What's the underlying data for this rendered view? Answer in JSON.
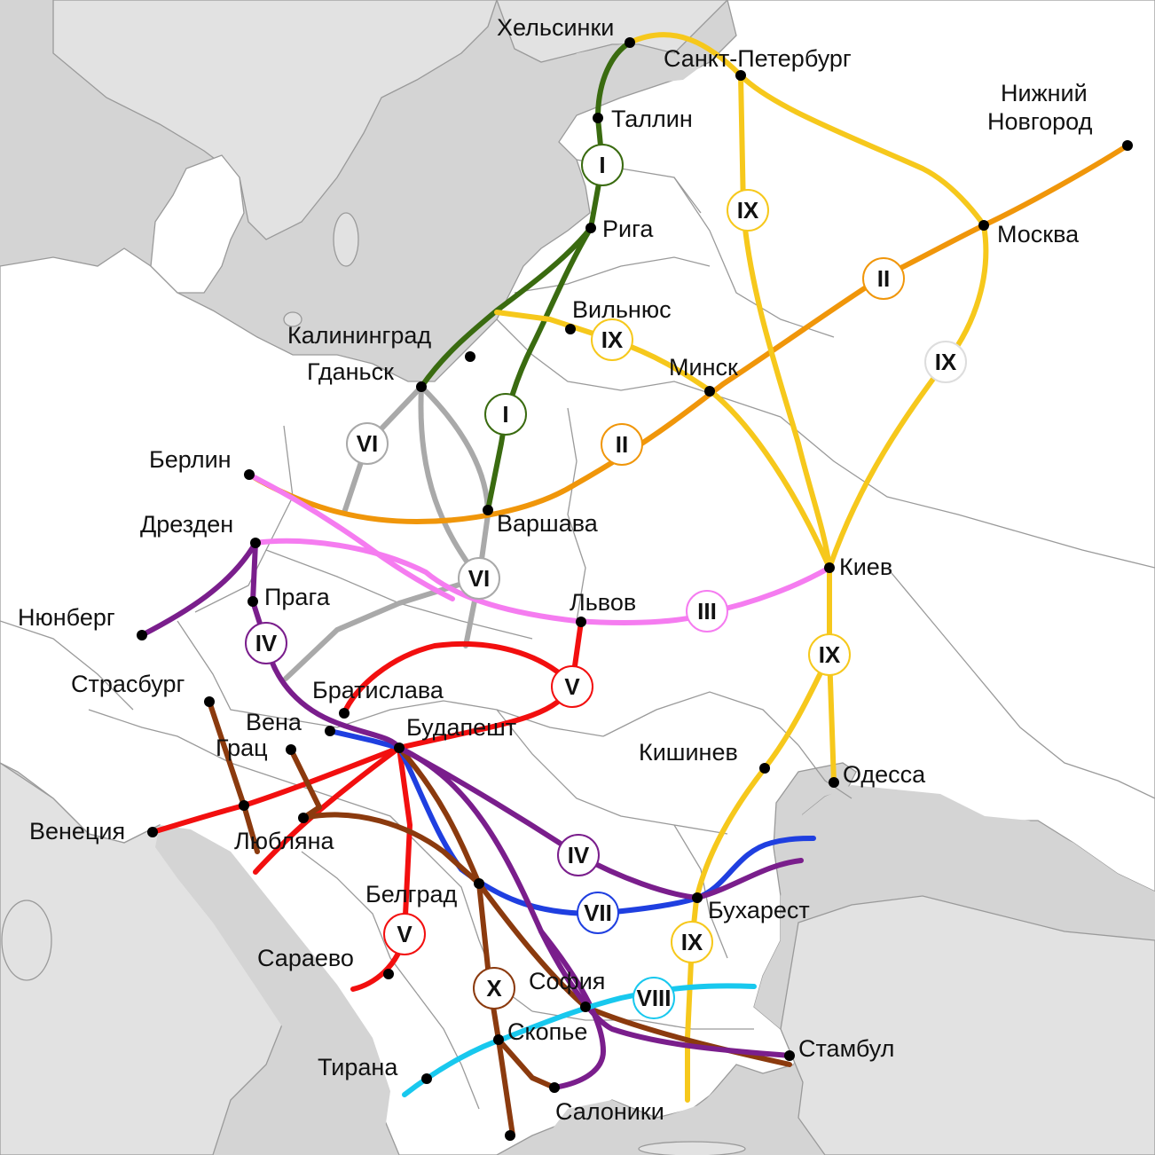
{
  "colors": {
    "sea": "#d4d4d4",
    "land": "#ffffff",
    "outside_land": "#e2e2e2",
    "corridor_I": "#3a6b10",
    "corridor_II": "#f0960a",
    "corridor_III": "#f57cf0",
    "corridor_IV": "#7a1e8c",
    "corridor_V": "#f20f0f",
    "corridor_VI": "#a9a9a9",
    "corridor_VII": "#1f3fe0",
    "corridor_VIII": "#18c8ee",
    "corridor_IX": "#f6c81c",
    "corridor_X": "#8b3a0e"
  },
  "cities": {
    "helsinki": "Хельсинки",
    "spb": "Санкт-Петербург",
    "nnovgorod_1": "Нижний",
    "nnovgorod_2": "Новгород",
    "tallinn": "Таллин",
    "riga": "Рига",
    "moscow": "Москва",
    "vilnius": "Вильнюс",
    "kaliningrad": "Калининград",
    "gdansk": "Гданьск",
    "minsk": "Минск",
    "berlin": "Берлин",
    "warsaw": "Варшава",
    "dresden": "Дрезден",
    "kiev": "Киев",
    "prague": "Прага",
    "nuremberg": "Нюнберг",
    "lviv": "Львов",
    "strasbourg": "Страсбург",
    "bratislava": "Братислава",
    "vienna": "Вена",
    "budapest": "Будапешт",
    "graz": "Грац",
    "chisinau": "Кишинев",
    "odessa": "Одесса",
    "venice": "Венеция",
    "ljubljana": "Любляна",
    "belgrade": "Белград",
    "bucharest": "Бухарест",
    "sarajevo": "Сараево",
    "sofia": "София",
    "skopje": "Скопье",
    "istanbul": "Стамбул",
    "tirana": "Тирана",
    "thessaloniki": "Салоники"
  },
  "corridors": {
    "I": "I",
    "II": "II",
    "III": "III",
    "IV": "IV",
    "V": "V",
    "VI": "VI",
    "VII": "VII",
    "VIII": "VIII",
    "IX": "IX",
    "X": "X"
  }
}
